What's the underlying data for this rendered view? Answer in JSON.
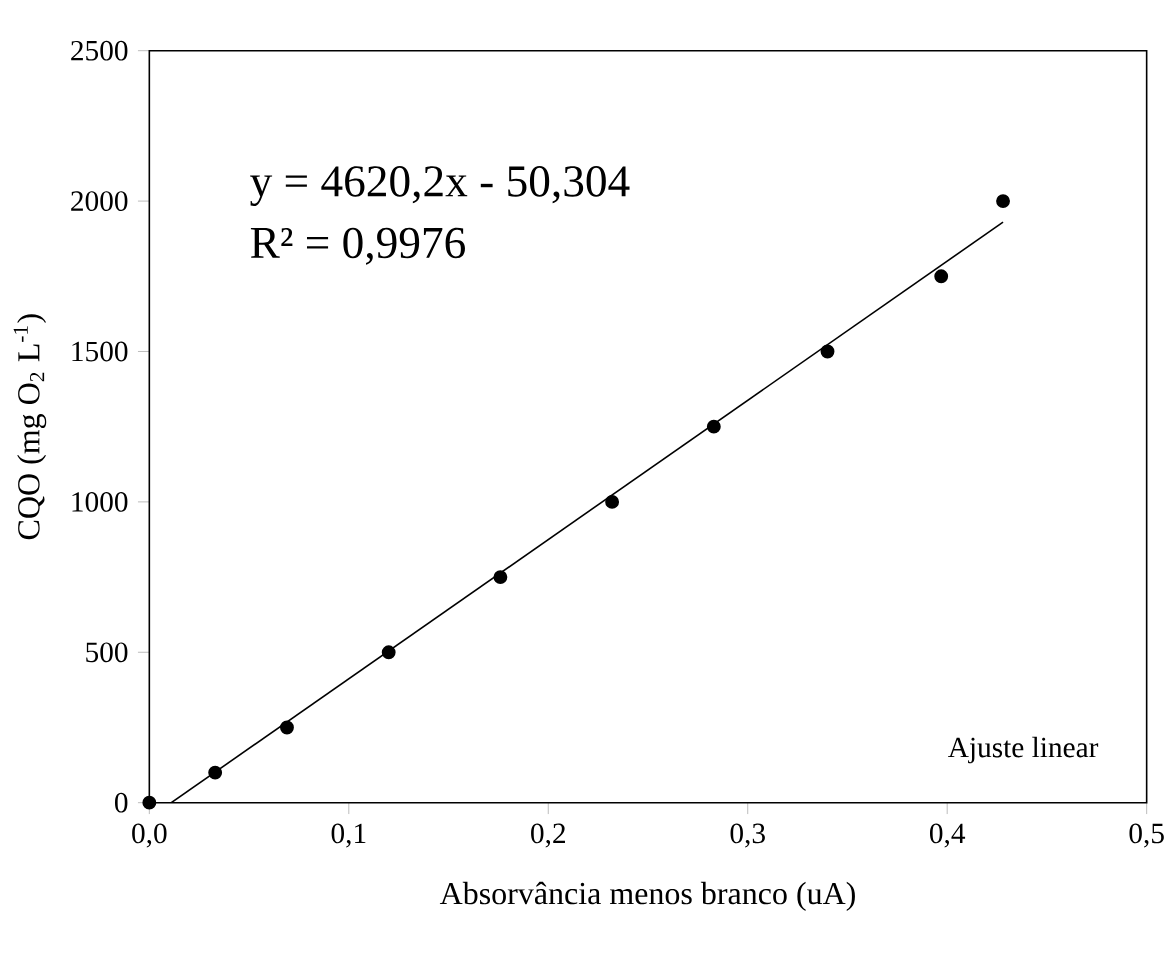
{
  "chart_data": {
    "type": "scatter",
    "xlabel": "Absorvância menos branco (uA)",
    "ylabel": "CQO (mg O$_{2}$ L$^{-1}$)",
    "series": [
      {
        "color": "#000000",
        "marker": "circle",
        "x": [
          0,
          0.033,
          0.069,
          0.12,
          0.176,
          0.232,
          0.283,
          0.34,
          0.397,
          0.428
        ],
        "values": [
          0,
          100,
          250,
          500,
          750,
          1000,
          1250,
          1500,
          1750,
          2000
        ]
      },
      {
        "type": "line",
        "color": "#000000",
        "marker": "none",
        "x": [
          0.011,
          0.428
        ],
        "values": [
          0,
          1930
        ]
      }
    ],
    "xlim": [
      0,
      0.5
    ],
    "ylim": [
      0,
      2500
    ],
    "xticks": [
      {
        "value": 0,
        "label": "0,0"
      },
      {
        "value": 0.1,
        "label": "0,1"
      },
      {
        "value": 0.2,
        "label": "0,2"
      },
      {
        "value": 0.3,
        "label": "0,3"
      },
      {
        "value": 0.4,
        "label": "0,4"
      },
      {
        "value": 0.5,
        "label": "0,5"
      }
    ],
    "yticks": [
      0,
      500,
      1000,
      1500,
      2000,
      2500
    ],
    "annotations": [
      "y = 4620,2x - 50,304",
      "R² = 0,9976",
      "Ajuste linear"
    ],
    "grid": false
  }
}
